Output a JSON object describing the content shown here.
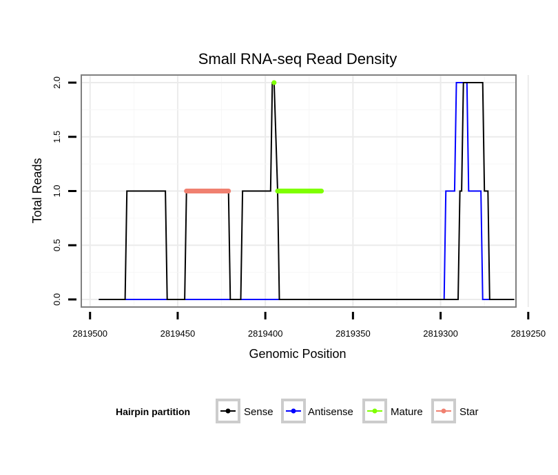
{
  "chart_data": {
    "type": "line",
    "title": "Small RNA-seq Read Density",
    "xlabel": "Genomic Position",
    "ylabel": "Total Reads",
    "xlim": [
      2819505,
      2819257
    ],
    "x_reversed": true,
    "ylim": [
      -0.07,
      2.07
    ],
    "xticks": [
      2819500,
      2819450,
      2819400,
      2819350,
      2819300,
      2819250
    ],
    "xtick_labels": [
      "2819500",
      "2819450",
      "2819400",
      "2819350",
      "2819300",
      "2819250"
    ],
    "yticks": [
      0.0,
      0.5,
      1.0,
      1.5,
      2.0
    ],
    "ytick_labels": [
      "0.0",
      "0.5",
      "1.0",
      "1.5",
      "2.0"
    ],
    "grid": true,
    "legend": {
      "title": "Hairpin partition",
      "position": "bottom",
      "items": [
        {
          "label": "Sense",
          "color": "#000000"
        },
        {
          "label": "Antisense",
          "color": "#0000ff"
        },
        {
          "label": "Mature",
          "color": "#7fff00"
        },
        {
          "label": "Star",
          "color": "#f08070"
        }
      ]
    },
    "series": [
      {
        "name": "Antisense",
        "kind": "line",
        "color": "#0000ff",
        "x": [
          2819495,
          2819298,
          2819297,
          2819292,
          2819291,
          2819285,
          2819284,
          2819277,
          2819276,
          2819273,
          2819272,
          2819258
        ],
        "y": [
          0,
          0,
          1,
          1,
          2,
          2,
          1,
          1,
          0,
          0,
          0,
          0
        ]
      },
      {
        "name": "Sense",
        "kind": "line",
        "color": "#000000",
        "x": [
          2819495,
          2819480,
          2819479,
          2819457,
          2819456,
          2819446,
          2819445,
          2819421,
          2819420,
          2819414,
          2819413,
          2819397,
          2819396,
          2819395,
          2819393,
          2819392,
          2819366,
          2819290,
          2819289,
          2819288,
          2819287,
          2819276,
          2819275,
          2819273,
          2819272,
          2819258
        ],
        "y": [
          0,
          0,
          1,
          1,
          0,
          0,
          1,
          1,
          0,
          0,
          1,
          1,
          2,
          2,
          1,
          0,
          0,
          0,
          1,
          1,
          2,
          2,
          1,
          1,
          0,
          0
        ]
      },
      {
        "name": "Star",
        "kind": "segment",
        "color": "#f08070",
        "x": [
          2819445,
          2819421
        ],
        "y": [
          1,
          1
        ]
      },
      {
        "name": "Mature",
        "kind": "segment",
        "color": "#7fff00",
        "x": [
          2819395,
          2819395
        ],
        "y": [
          2,
          2
        ]
      },
      {
        "name": "Mature",
        "kind": "segment",
        "color": "#7fff00",
        "x": [
          2819393,
          2819368
        ],
        "y": [
          1,
          1
        ]
      }
    ]
  }
}
